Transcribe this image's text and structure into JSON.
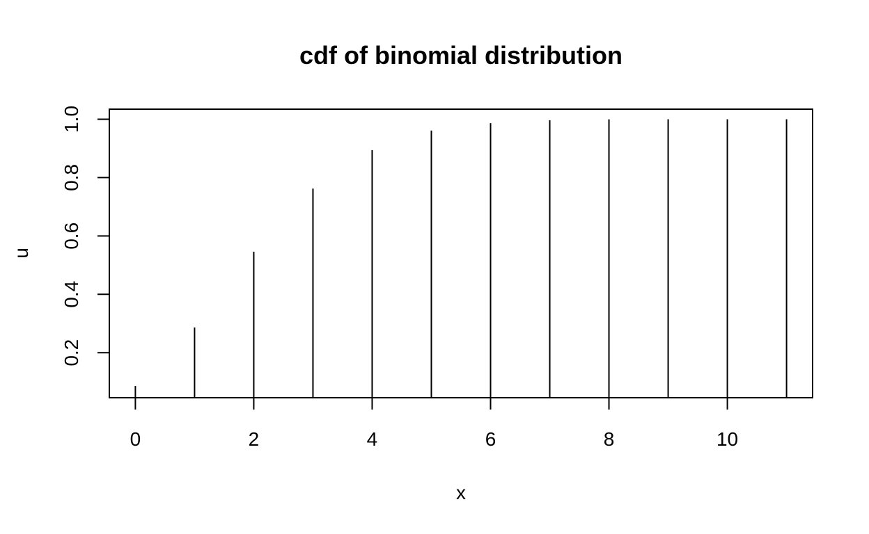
{
  "chart_data": {
    "type": "bar",
    "style": "histogram-type vertical lines (R type='h')",
    "title": "cdf of binomial distribution",
    "xlabel": "x",
    "ylabel": "u",
    "x": [
      0,
      1,
      2,
      3,
      4,
      5,
      6,
      7,
      8,
      9,
      10,
      11
    ],
    "values": [
      0.0859,
      0.2863,
      0.546,
      0.7621,
      0.8941,
      0.961,
      0.9865,
      0.9966,
      0.9996,
      0.9999,
      1.0,
      1.0
    ],
    "xlim": [
      -0.44,
      11.44
    ],
    "ylim": [
      0.0456,
      1.0344
    ],
    "x_ticks": [
      0,
      2,
      4,
      6,
      8,
      10
    ],
    "x_tick_labels": [
      "0",
      "2",
      "4",
      "6",
      "8",
      "10"
    ],
    "y_ticks": [
      0.2,
      0.4,
      0.6,
      0.8,
      1.0
    ],
    "y_tick_labels": [
      "0.2",
      "0.4",
      "0.6",
      "0.8",
      "1.0"
    ],
    "grid": false,
    "legend": "none",
    "line_color": "#000000",
    "background": "#ffffff"
  }
}
